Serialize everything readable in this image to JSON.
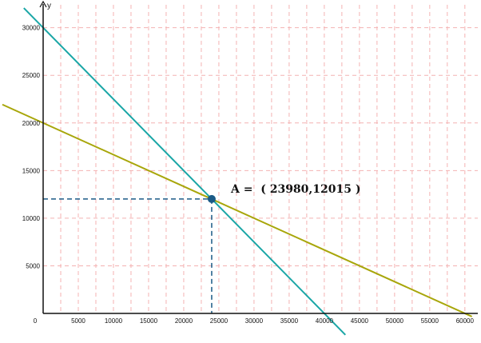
{
  "chart_data": {
    "type": "line",
    "title": "",
    "xlabel": "",
    "ylabel": "y",
    "xlim": [
      0,
      61000
    ],
    "ylim": [
      0,
      32500
    ],
    "x_ticks": [
      0,
      5000,
      10000,
      15000,
      20000,
      25000,
      30000,
      35000,
      40000,
      45000,
      50000,
      55000,
      60000
    ],
    "y_ticks": [
      5000,
      10000,
      15000,
      20000,
      25000,
      30000
    ],
    "grid": true,
    "series": [
      {
        "color": "#1aa6a6",
        "x": [
          0,
          40000
        ],
        "y": [
          30000,
          0
        ]
      },
      {
        "color": "#a8a60a",
        "x": [
          0,
          60000
        ],
        "y": [
          20000,
          0
        ]
      }
    ],
    "point": {
      "label": "A",
      "x": 23980,
      "y": 12015,
      "text": "A =  ( 23980,12015 )",
      "color": "#1b5a86"
    },
    "colors": {
      "grid": "#f4b2b2",
      "axis": "#111111",
      "guide": "#1b5a86"
    }
  }
}
